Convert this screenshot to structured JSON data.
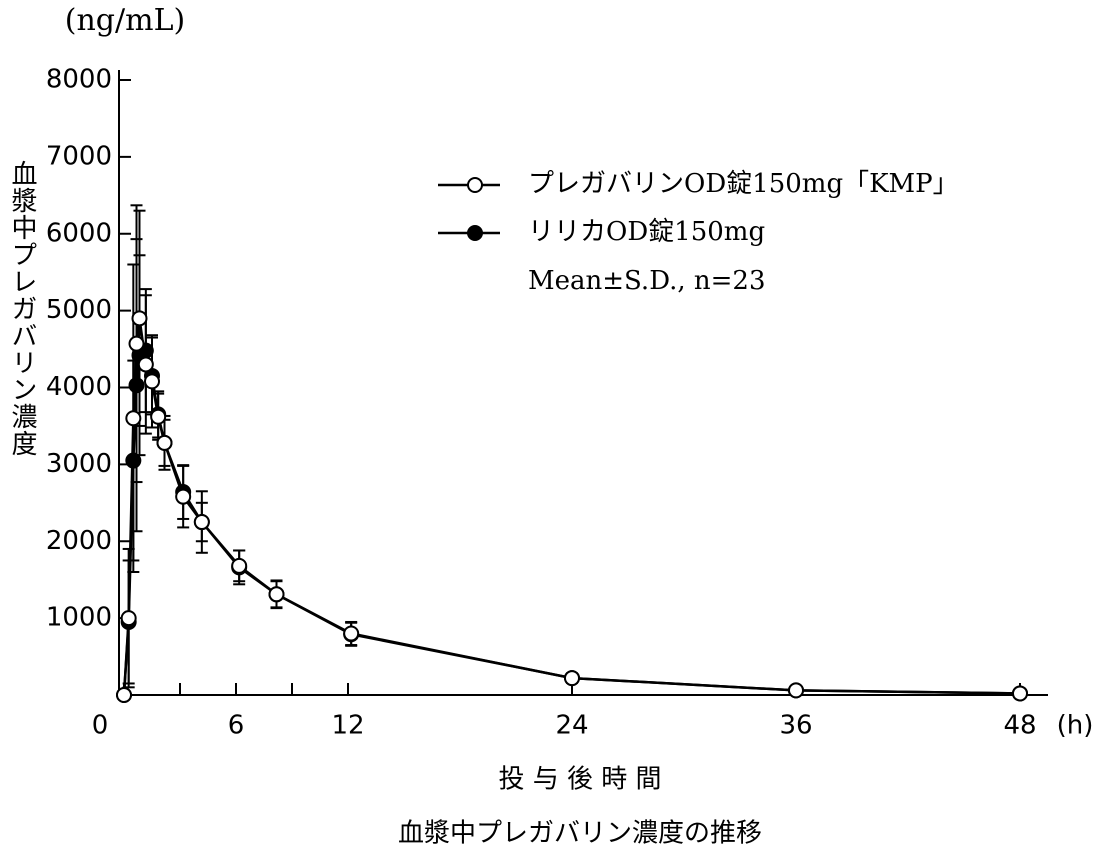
{
  "chart_data": {
    "type": "line",
    "title": "血漿中プレガバリン濃度の推移",
    "xlabel": "投 与 後 時 間",
    "ylabel": "血漿中プレガバリン濃度",
    "y_unit": "(ng/mL)",
    "x_unit": "(h)",
    "annotation": "Mean±S.D., n=23",
    "x": [
      0,
      0.25,
      0.5,
      0.67,
      0.83,
      1.17,
      1.5,
      1.83,
      2.17,
      3.17,
      4.17,
      6.17,
      8.17,
      12.17,
      24,
      36,
      48
    ],
    "series": [
      {
        "name": "プレガバリンOD錠150mg「KMP」",
        "marker": "open",
        "color": "#000000",
        "values": [
          0,
          1000,
          3600,
          4570,
          4900,
          4300,
          4080,
          3620,
          3280,
          2580,
          2250,
          1680,
          1310,
          800,
          220,
          60,
          20
        ],
        "errors": [
          0,
          900,
          2000,
          1800,
          1400,
          900,
          600,
          300,
          350,
          400,
          400,
          200,
          180,
          150,
          60,
          20,
          10
        ]
      },
      {
        "name": "リリカOD錠150mg",
        "marker": "filled",
        "color": "#000000",
        "values": [
          0,
          950,
          3050,
          4030,
          4420,
          4480,
          4150,
          3650,
          3280,
          2640,
          2250,
          1660,
          1310,
          790,
          220,
          60,
          20
        ],
        "errors": [
          0,
          800,
          1300,
          1900,
          1300,
          800,
          500,
          300,
          300,
          350,
          250,
          220,
          170,
          150,
          60,
          20,
          10
        ]
      }
    ],
    "xlim": [
      0,
      48
    ],
    "xticks": [
      0,
      6,
      12,
      24,
      36,
      48
    ],
    "xminor_ticks": [
      3,
      9
    ],
    "ylim": [
      0,
      8000
    ],
    "yticks": [
      1000,
      2000,
      3000,
      4000,
      5000,
      6000,
      7000,
      8000
    ],
    "legend": "upper right"
  }
}
